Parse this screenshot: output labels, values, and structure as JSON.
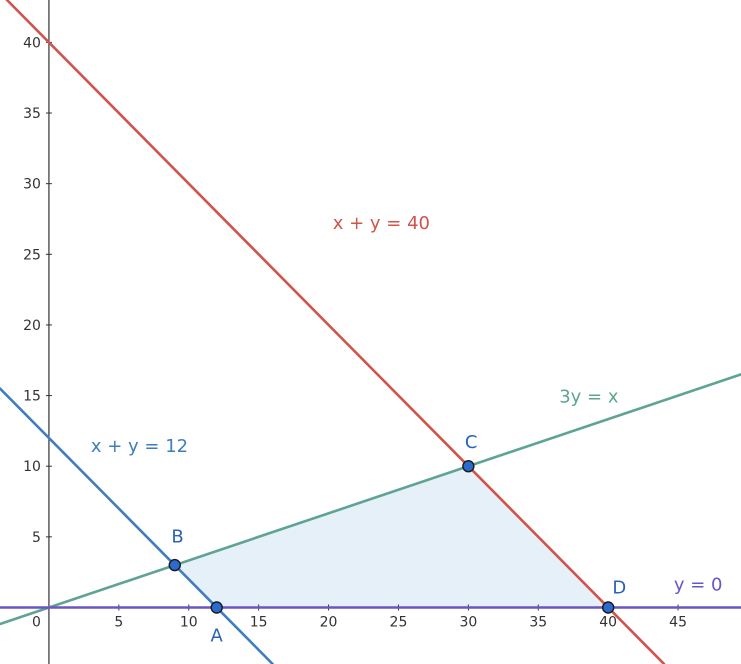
{
  "chart_data": {
    "type": "line",
    "xlim": [
      -3.5,
      49.5
    ],
    "ylim": [
      -4,
      43
    ],
    "x_ticks": [
      5,
      10,
      15,
      20,
      25,
      30,
      35,
      40,
      45
    ],
    "y_ticks": [
      5,
      10,
      15,
      20,
      25,
      30,
      35,
      40
    ],
    "origin_label": "0",
    "grid": false,
    "lines": [
      {
        "label": "x + y = 40",
        "a": 1,
        "b": 1,
        "c": 40,
        "color": "#d1534b",
        "label_at": [
          20.3,
          26.8
        ]
      },
      {
        "label": "x + y = 12",
        "a": 1,
        "b": 1,
        "c": 12,
        "color": "#3f7dbf",
        "label_at": [
          3.0,
          11.0
        ]
      },
      {
        "label": "3y = x",
        "a": -1,
        "b": 3,
        "c": 0,
        "color": "#5ea394",
        "label_at": [
          36.5,
          14.5
        ]
      },
      {
        "label": "y = 0",
        "a": 0,
        "b": 1,
        "c": 0,
        "color": "#6a55c2",
        "label_at": [
          44.7,
          1.2
        ]
      }
    ],
    "points": [
      {
        "label": "A",
        "x": 12,
        "y": 0,
        "label_at": [
          12,
          -2.4
        ]
      },
      {
        "label": "B",
        "x": 9,
        "y": 3,
        "label_at": [
          9.2,
          4.6
        ]
      },
      {
        "label": "C",
        "x": 30,
        "y": 10,
        "label_at": [
          30.2,
          11.3
        ]
      },
      {
        "label": "D",
        "x": 40,
        "y": 0,
        "label_at": [
          40.8,
          1.0
        ]
      }
    ],
    "feasible_region": [
      [
        12,
        0
      ],
      [
        9,
        3
      ],
      [
        30,
        10
      ],
      [
        40,
        0
      ]
    ],
    "colors": {
      "region_fill": "#e6f0f9",
      "point_fill": "#2a6bcf",
      "point_stroke": "#1a1a1a",
      "point_label": "#2a63b6",
      "axis": "#333333"
    }
  }
}
